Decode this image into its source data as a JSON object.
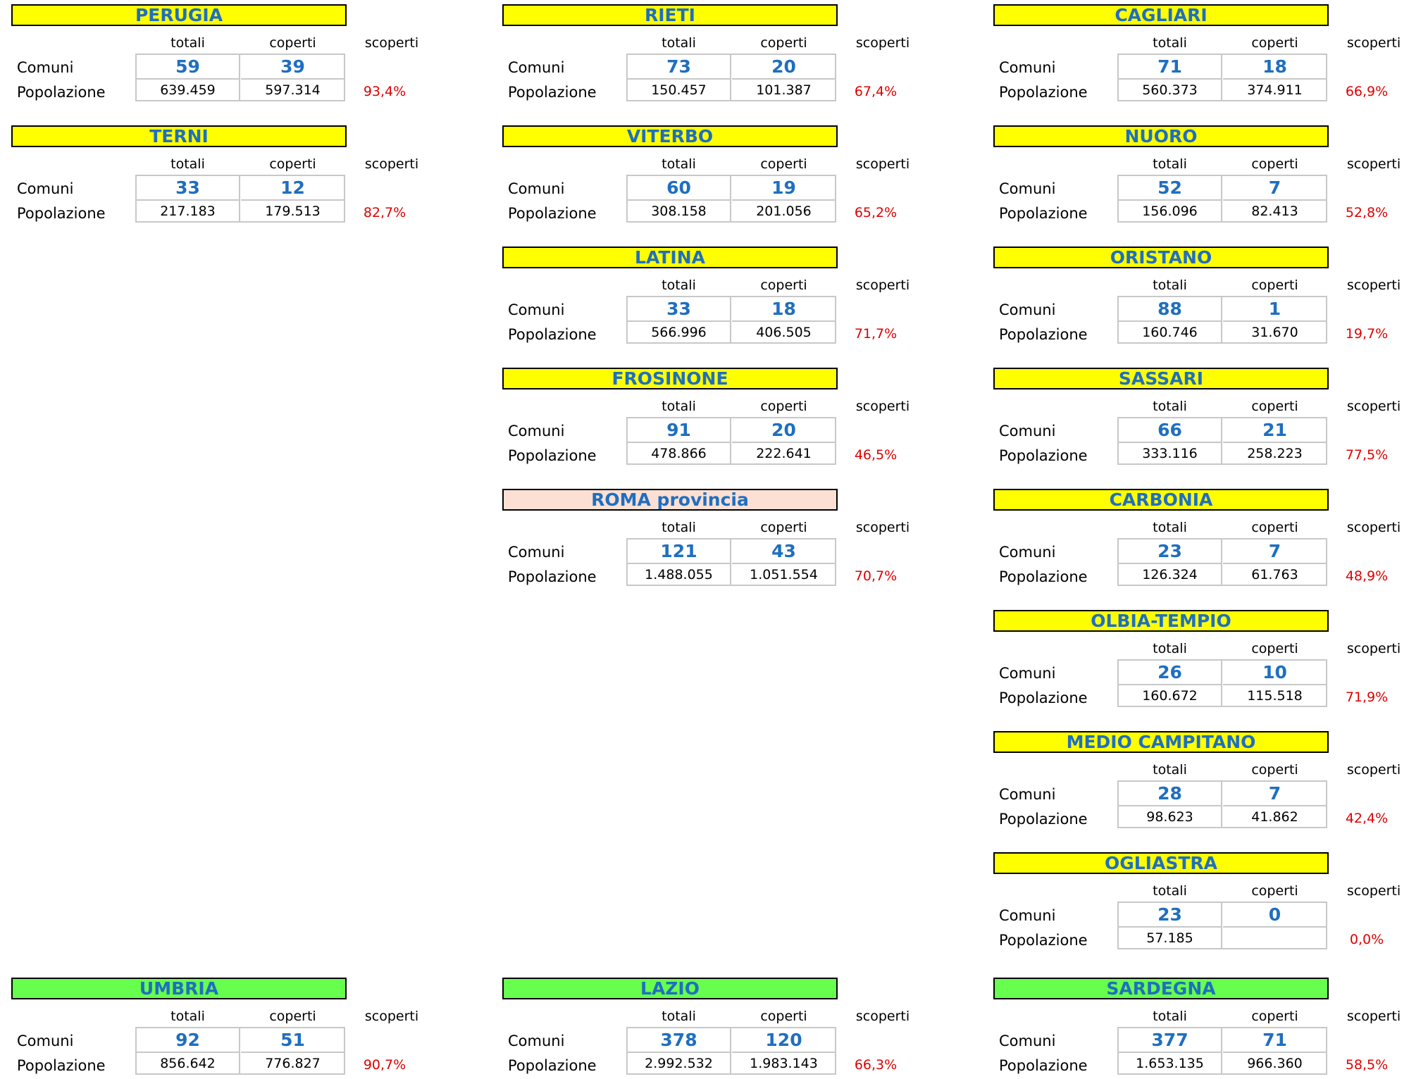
{
  "labels": {
    "col_totali": "totali",
    "col_coperti": "coperti",
    "col_scoperti": "scoperti",
    "row_comuni": "Comuni",
    "row_popolazione": "Popolazione"
  },
  "colors": {
    "header_yellow": "#ffff00",
    "header_pink": "#fde0d4",
    "header_green": "#66ff4d",
    "title_blue": "#1f6fc0",
    "percent_red": "#e00000"
  },
  "panels": [
    {
      "name": "PERUGIA",
      "comuni_totali": "59",
      "comuni_coperti": "39",
      "pop_totali": "639.459",
      "pop_coperti": "597.314",
      "scoperti": "93,4%",
      "style": "yellow"
    },
    {
      "name": "TERNI",
      "comuni_totali": "33",
      "comuni_coperti": "12",
      "pop_totali": "217.183",
      "pop_coperti": "179.513",
      "scoperti": "82,7%",
      "style": "yellow"
    },
    {
      "name": "RIETI",
      "comuni_totali": "73",
      "comuni_coperti": "20",
      "pop_totali": "150.457",
      "pop_coperti": "101.387",
      "scoperti": "67,4%",
      "style": "yellow"
    },
    {
      "name": "VITERBO",
      "comuni_totali": "60",
      "comuni_coperti": "19",
      "pop_totali": "308.158",
      "pop_coperti": "201.056",
      "scoperti": "65,2%",
      "style": "yellow"
    },
    {
      "name": "LATINA",
      "comuni_totali": "33",
      "comuni_coperti": "18",
      "pop_totali": "566.996",
      "pop_coperti": "406.505",
      "scoperti": "71,7%",
      "style": "yellow"
    },
    {
      "name": "FROSINONE",
      "comuni_totali": "91",
      "comuni_coperti": "20",
      "pop_totali": "478.866",
      "pop_coperti": "222.641",
      "scoperti": "46,5%",
      "style": "yellow"
    },
    {
      "name": "ROMA provincia",
      "comuni_totali": "121",
      "comuni_coperti": "43",
      "pop_totali": "1.488.055",
      "pop_coperti": "1.051.554",
      "scoperti": "70,7%",
      "style": "pink"
    },
    {
      "name": "CAGLIARI",
      "comuni_totali": "71",
      "comuni_coperti": "18",
      "pop_totali": "560.373",
      "pop_coperti": "374.911",
      "scoperti": "66,9%",
      "style": "yellow"
    },
    {
      "name": "NUORO",
      "comuni_totali": "52",
      "comuni_coperti": "7",
      "pop_totali": "156.096",
      "pop_coperti": "82.413",
      "scoperti": "52,8%",
      "style": "yellow"
    },
    {
      "name": "ORISTANO",
      "comuni_totali": "88",
      "comuni_coperti": "1",
      "pop_totali": "160.746",
      "pop_coperti": "31.670",
      "scoperti": "19,7%",
      "style": "yellow"
    },
    {
      "name": "SASSARI",
      "comuni_totali": "66",
      "comuni_coperti": "21",
      "pop_totali": "333.116",
      "pop_coperti": "258.223",
      "scoperti": "77,5%",
      "style": "yellow"
    },
    {
      "name": "CARBONIA",
      "comuni_totali": "23",
      "comuni_coperti": "7",
      "pop_totali": "126.324",
      "pop_coperti": "61.763",
      "scoperti": "48,9%",
      "style": "yellow"
    },
    {
      "name": "OLBIA-TEMPIO",
      "comuni_totali": "26",
      "comuni_coperti": "10",
      "pop_totali": "160.672",
      "pop_coperti": "115.518",
      "scoperti": "71,9%",
      "style": "yellow"
    },
    {
      "name": "MEDIO CAMPITANO",
      "comuni_totali": "28",
      "comuni_coperti": "7",
      "pop_totali": "98.623",
      "pop_coperti": "41.862",
      "scoperti": "42,4%",
      "style": "yellow"
    },
    {
      "name": "OGLIASTRA",
      "comuni_totali": "23",
      "comuni_coperti": "0",
      "pop_totali": "57.185",
      "pop_coperti": "",
      "scoperti": "0,0%",
      "style": "yellow"
    },
    {
      "name": "UMBRIA",
      "comuni_totali": "92",
      "comuni_coperti": "51",
      "pop_totali": "856.642",
      "pop_coperti": "776.827",
      "scoperti": "90,7%",
      "style": "green"
    },
    {
      "name": "LAZIO",
      "comuni_totali": "378",
      "comuni_coperti": "120",
      "pop_totali": "2.992.532",
      "pop_coperti": "1.983.143",
      "scoperti": "66,3%",
      "style": "green"
    },
    {
      "name": "SARDEGNA",
      "comuni_totali": "377",
      "comuni_coperti": "71",
      "pop_totali": "1.653.135",
      "pop_coperti": "966.360",
      "scoperti": "58,5%",
      "style": "green"
    }
  ]
}
